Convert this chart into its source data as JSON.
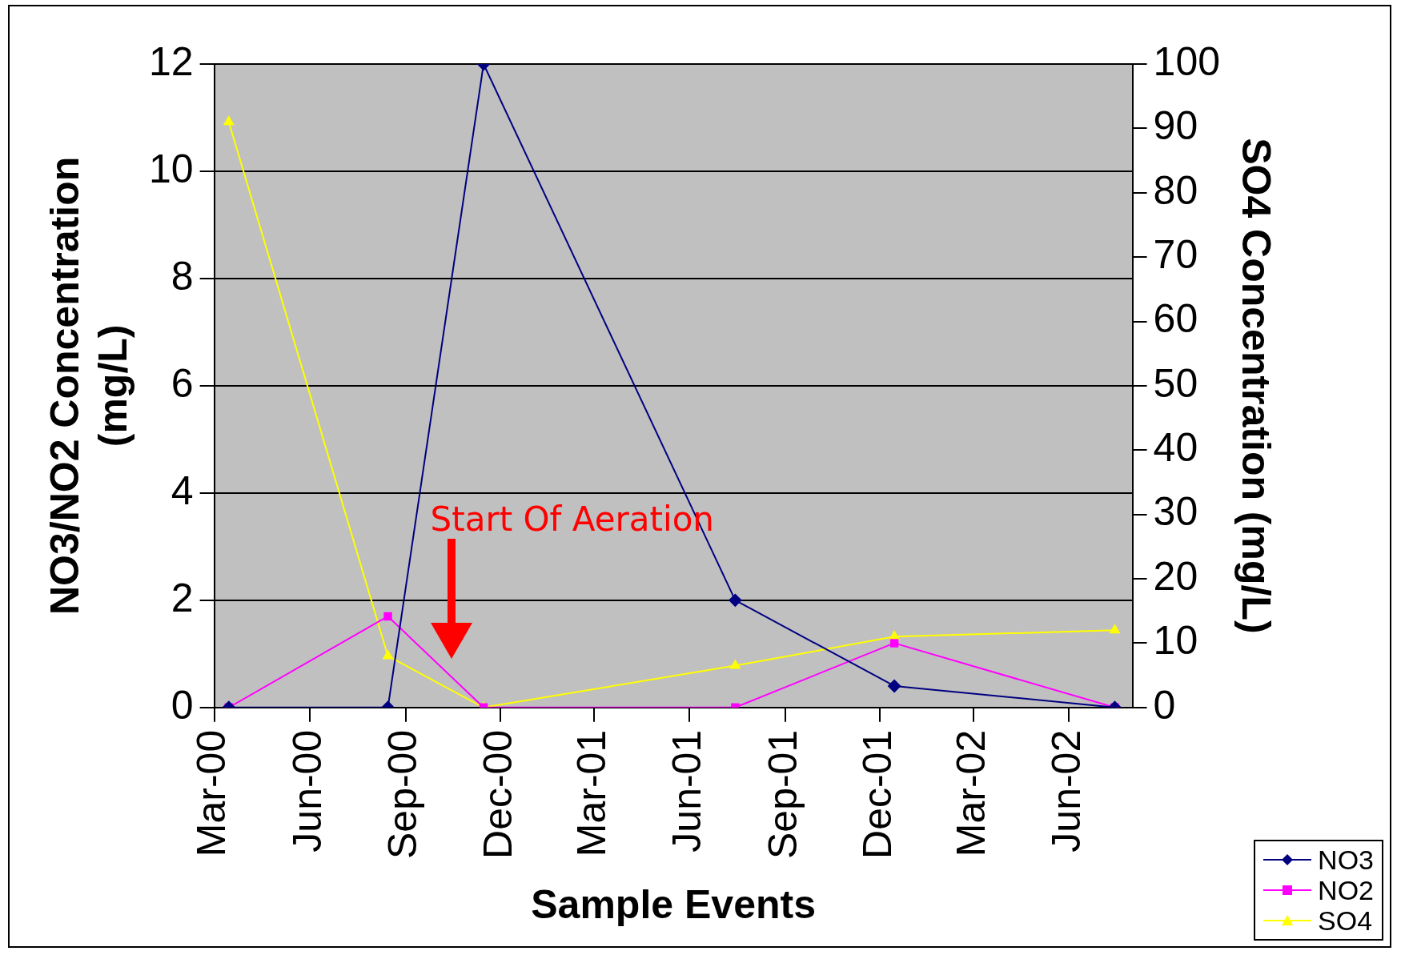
{
  "chart_data": {
    "type": "line",
    "xlabel": "Sample Events",
    "ylabel": "NO3/NO2 Concentration\n(mg/L)",
    "y2label": "SO4 Concentration (mg/L)",
    "x": [
      "2000-03-15",
      "2000-08-15",
      "2000-11-15",
      "2001-07-15",
      "2001-12-15",
      "2002-07-15"
    ],
    "xlim": [
      "2000-03-01",
      "2002-08-01"
    ],
    "xticks": [
      {
        "value": "2000-03-01",
        "label": "Mar-00"
      },
      {
        "value": "2000-06-01",
        "label": "Jun-00"
      },
      {
        "value": "2000-09-01",
        "label": "Sep-00"
      },
      {
        "value": "2000-12-01",
        "label": "Dec-00"
      },
      {
        "value": "2001-03-01",
        "label": "Mar-01"
      },
      {
        "value": "2001-06-01",
        "label": "Jun-01"
      },
      {
        "value": "2001-09-01",
        "label": "Sep-01"
      },
      {
        "value": "2001-12-01",
        "label": "Dec-01"
      },
      {
        "value": "2002-03-01",
        "label": "Mar-02"
      },
      {
        "value": "2002-06-01",
        "label": "Jun-02"
      }
    ],
    "ylim": [
      0,
      12
    ],
    "yticks": [
      0,
      2,
      4,
      6,
      8,
      10,
      12
    ],
    "y2lim": [
      0,
      100
    ],
    "y2ticks": [
      0,
      10,
      20,
      30,
      40,
      50,
      60,
      70,
      80,
      90,
      100
    ],
    "series": [
      {
        "name": "NO3",
        "color": "#000080",
        "marker": "diamond",
        "values": [
          0,
          0,
          12,
          2,
          0.4,
          0
        ]
      },
      {
        "name": "NO2",
        "color": "#ff00ff",
        "marker": "square",
        "values": [
          0,
          1.7,
          0,
          0,
          1.2,
          0
        ]
      },
      {
        "name": "SO4",
        "color": "#ffff00",
        "marker": "triangle",
        "axis": "y2",
        "values": [
          91,
          8,
          0,
          6.5,
          11,
          12
        ]
      }
    ],
    "annotations": [
      "Start Of Aeration"
    ],
    "grid": "y",
    "legend": "bottom right"
  }
}
